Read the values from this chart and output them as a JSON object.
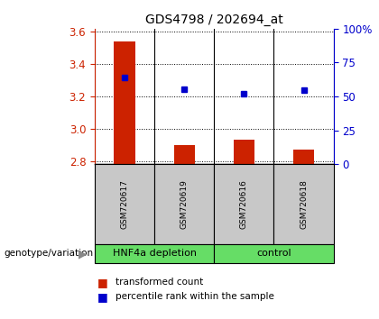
{
  "title": "GDS4798 / 202694_at",
  "samples": [
    "GSM720617",
    "GSM720619",
    "GSM720616",
    "GSM720618"
  ],
  "groups": [
    "HNF4a depletion",
    "HNF4a depletion",
    "control",
    "control"
  ],
  "transformed_count": [
    3.54,
    2.9,
    2.93,
    2.87
  ],
  "percentile_rank": [
    3.315,
    3.245,
    3.22,
    3.24
  ],
  "ylim_left": [
    2.78,
    3.62
  ],
  "yticks_left": [
    2.8,
    3.0,
    3.2,
    3.4,
    3.6
  ],
  "yticks_right": [
    0,
    25,
    50,
    75,
    100
  ],
  "bar_color": "#CC2200",
  "dot_color": "#0000CC",
  "bar_bottom": 2.78,
  "group_label": "genotype/variation",
  "group_list": [
    [
      "HNF4a depletion",
      0,
      1
    ],
    [
      "control",
      2,
      3
    ]
  ],
  "green_color": "#66DD66",
  "gray_color": "#C8C8C8"
}
